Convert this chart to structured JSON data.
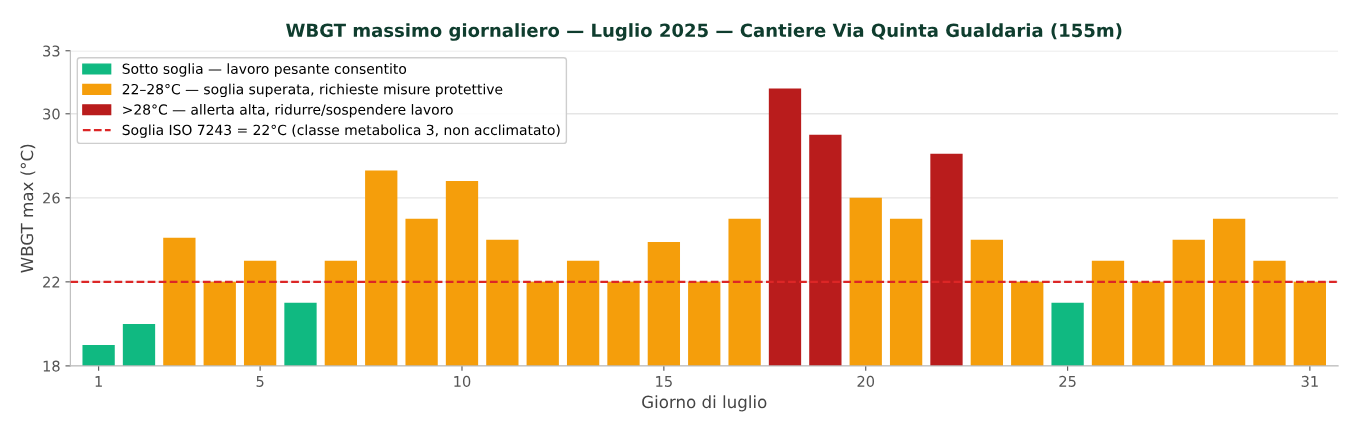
{
  "chart_data": {
    "type": "bar",
    "title": "WBGT massimo giornaliero — Luglio 2025 — Cantiere Via Quinta Gualdaria (155m)",
    "xlabel": "Giorno di luglio",
    "ylabel": "WBGT max (°C)",
    "x": [
      1,
      2,
      3,
      4,
      5,
      6,
      7,
      8,
      9,
      10,
      11,
      12,
      13,
      14,
      15,
      16,
      17,
      18,
      19,
      20,
      21,
      22,
      23,
      24,
      25,
      26,
      27,
      28,
      29,
      30,
      31
    ],
    "series": [
      {
        "name": "Sotto soglia — lavoro pesante consentito",
        "color": "#10b981",
        "values": [
          19,
          20,
          null,
          null,
          null,
          21,
          null,
          null,
          null,
          null,
          null,
          null,
          null,
          null,
          null,
          null,
          null,
          null,
          null,
          null,
          null,
          null,
          null,
          null,
          21,
          null,
          null,
          null,
          null,
          null,
          null
        ]
      },
      {
        "name": "22–28°C — soglia superata, richieste misure protettive",
        "color": "#f59e0b",
        "values": [
          null,
          null,
          24.1,
          22,
          23,
          null,
          23,
          27.3,
          25,
          26.8,
          24,
          22,
          23,
          22,
          23.9,
          22,
          25,
          null,
          null,
          26,
          25,
          null,
          24,
          22,
          null,
          23,
          22,
          24,
          25,
          23,
          22
        ]
      },
      {
        "name": ">28°C — allerta alta, ridurre/sospendere lavoro",
        "color": "#b91c1c",
        "values": [
          null,
          null,
          null,
          null,
          null,
          null,
          null,
          null,
          null,
          null,
          null,
          null,
          null,
          null,
          null,
          null,
          null,
          31.2,
          29,
          null,
          null,
          28.1,
          null,
          null,
          null,
          null,
          null,
          null,
          null,
          null,
          null
        ]
      }
    ],
    "ref_lines": [
      {
        "axis": "y",
        "value": 22,
        "label": "Soglia ISO 7243 = 22°C (classe metabolica 3, non acclimatato)",
        "color": "#dc2626",
        "line_style": "dashed"
      }
    ],
    "xlim": [
      0.3,
      31.7
    ],
    "xticks": [
      1,
      5,
      10,
      15,
      20,
      25,
      31
    ],
    "ylim": [
      18,
      33
    ],
    "yticks": [
      18,
      22,
      26,
      30,
      33
    ],
    "grid": "y",
    "legend": "top left"
  }
}
